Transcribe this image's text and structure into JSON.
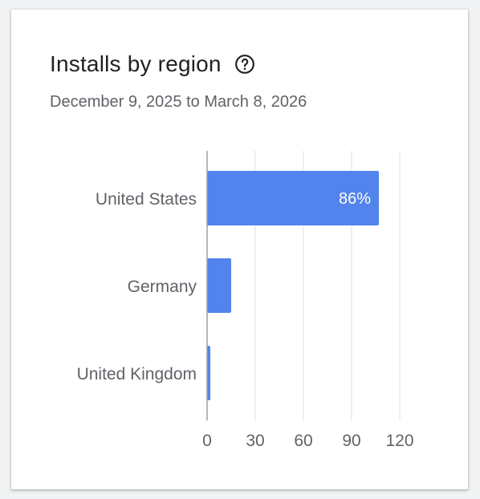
{
  "card": {
    "title": "Installs by region",
    "subtitle": "December 9, 2025 to March 8, 2026",
    "help_icon": "help-circle-icon"
  },
  "colors": {
    "bar": "#5383ec",
    "grid": "#e8eaed",
    "axis": "#9aa0a6"
  },
  "chart_data": {
    "type": "bar",
    "orientation": "horizontal",
    "categories": [
      "United States",
      "Germany",
      "United Kingdom"
    ],
    "values": [
      107,
      15,
      2
    ],
    "data_labels": [
      "86%",
      "",
      ""
    ],
    "xlim": [
      0,
      120
    ],
    "xticks": [
      0,
      30,
      60,
      90,
      120
    ],
    "grid": true,
    "legend": "none"
  }
}
